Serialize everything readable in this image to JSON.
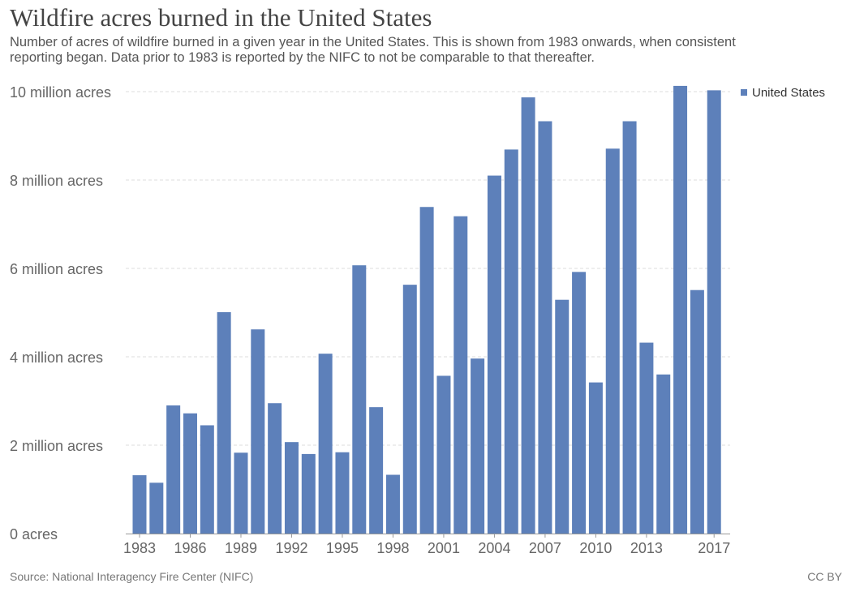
{
  "chart_data": {
    "type": "bar",
    "title": "Wildfire acres burned in the United States",
    "subtitle": "Number of acres of wildfire burned in a given year in the United States. This is shown from 1983 onwards, when consistent reporting began. Data prior to 1983 is reported by the NIFC to not be comparable to that thereafter.",
    "categories": [
      1983,
      1984,
      1985,
      1986,
      1987,
      1988,
      1989,
      1990,
      1991,
      1992,
      1993,
      1994,
      1995,
      1996,
      1997,
      1998,
      1999,
      2000,
      2001,
      2002,
      2003,
      2004,
      2005,
      2006,
      2007,
      2008,
      2009,
      2010,
      2011,
      2012,
      2013,
      2014,
      2015,
      2016,
      2017
    ],
    "series": [
      {
        "name": "United States",
        "color": "#5d80ba",
        "values": [
          1.32,
          1.15,
          2.9,
          2.72,
          2.45,
          5.01,
          1.83,
          4.62,
          2.95,
          2.07,
          1.8,
          4.07,
          1.84,
          6.07,
          2.86,
          1.33,
          5.63,
          7.39,
          3.57,
          7.18,
          3.96,
          8.1,
          8.69,
          9.87,
          9.33,
          5.29,
          5.92,
          3.42,
          8.71,
          9.33,
          4.32,
          3.6,
          10.13,
          5.51,
          10.03
        ]
      }
    ],
    "unit": "million acres",
    "ylim": [
      0,
      10
    ],
    "yticks": [
      0,
      2,
      4,
      6,
      8,
      10
    ],
    "ytick_labels": [
      "0 acres",
      "2 million acres",
      "4 million acres",
      "6 million acres",
      "8 million acres",
      "10 million acres"
    ],
    "xtick_labels": [
      "1983",
      "1986",
      "1989",
      "1992",
      "1995",
      "1998",
      "2001",
      "2004",
      "2007",
      "2010",
      "2013",
      "2017"
    ],
    "grid": "horizontal dashed",
    "legend_position": "top-right"
  },
  "source": "Source: National Interagency Fire Center (NIFC)",
  "license": "CC BY"
}
